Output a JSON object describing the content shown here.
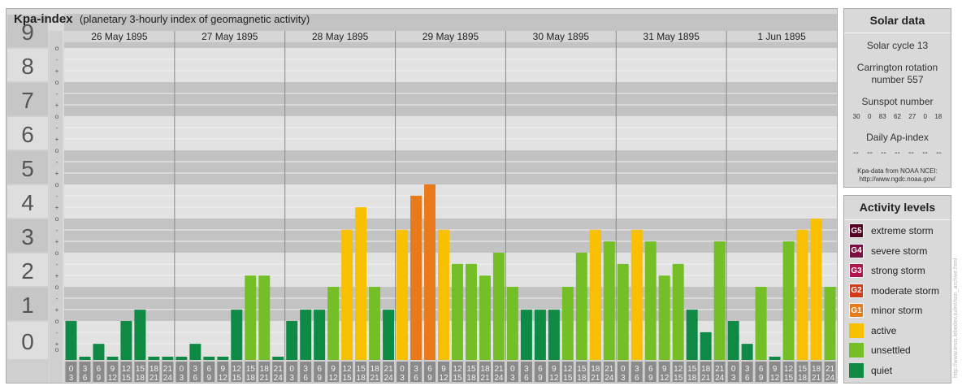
{
  "header": {
    "title": "Kpa-index",
    "subtitle": "(planetary 3-hourly index of geomagnetic activity)"
  },
  "solar": {
    "title": "Solar data",
    "cycle": "Solar cycle 13",
    "carrington": "Carrington rotation number 557",
    "sunspot_label": "Sunspot number",
    "sunspot_values": [
      "30",
      "0",
      "83",
      "62",
      "27",
      "0",
      "18"
    ],
    "ap_label": "Daily Ap-index",
    "ap_values": [
      "--",
      "--",
      "--",
      "--",
      "--",
      "--",
      "--"
    ],
    "source_note_1": "Kpa-data from NOAA NCEI:",
    "source_note_2": "http://www.ngdc.noaa.gov/"
  },
  "activity": {
    "title": "Activity levels",
    "levels": [
      {
        "code": "G5",
        "label": "extreme storm",
        "color": "#5a0025"
      },
      {
        "code": "G4",
        "label": "severe storm",
        "color": "#7a1040"
      },
      {
        "code": "G3",
        "label": "strong storm",
        "color": "#b0154e"
      },
      {
        "code": "G2",
        "label": "moderate storm",
        "color": "#d23a1c"
      },
      {
        "code": "G1",
        "label": "minor storm",
        "color": "#e87a1c"
      },
      {
        "code": "",
        "label": "active",
        "color": "#f8c000"
      },
      {
        "code": "",
        "label": "unsettled",
        "color": "#74bf26"
      },
      {
        "code": "",
        "label": "quiet",
        "color": "#0e8a45"
      }
    ]
  },
  "watermark": "http://www.tesis.lebedev.ru/en/sun_archive.html",
  "chart_data": {
    "type": "bar",
    "title": "Kpa-index",
    "ylim": [
      0,
      9
    ],
    "y_ticks": [
      "0",
      "1",
      "2",
      "3",
      "4",
      "5",
      "6",
      "7",
      "8",
      "9"
    ],
    "y_minor_ticks": [
      "o",
      "+",
      "-"
    ],
    "days": [
      "26 May 1895",
      "27 May 1895",
      "28 May 1895",
      "29 May 1895",
      "30 May 1895",
      "31 May 1895",
      "1 Jun 1895"
    ],
    "interval_start_labels": [
      "0",
      "3",
      "6",
      "9",
      "12",
      "15",
      "18",
      "21"
    ],
    "interval_end_labels": [
      "3",
      "6",
      "9",
      "12",
      "15",
      "18",
      "21",
      "24"
    ],
    "colors": {
      "quiet": "#0e8a45",
      "unsettled": "#74bf26",
      "active": "#f8c000",
      "minor_storm": "#e87a1c"
    },
    "values": [
      1.0,
      0.0,
      0.33,
      0.0,
      1.0,
      1.33,
      0.0,
      0.0,
      0.0,
      0.33,
      0.0,
      0.0,
      1.33,
      2.33,
      2.33,
      0.0,
      1.0,
      1.33,
      1.33,
      2.0,
      3.67,
      4.33,
      2.0,
      1.33,
      3.67,
      4.67,
      5.0,
      3.67,
      2.67,
      2.67,
      2.33,
      3.0,
      2.0,
      1.33,
      1.33,
      1.33,
      2.0,
      3.0,
      3.67,
      3.33,
      2.67,
      3.67,
      3.33,
      2.33,
      2.67,
      1.33,
      0.67,
      3.33,
      1.0,
      0.33,
      2.0,
      0.0,
      3.33,
      3.67,
      4.0,
      2.0
    ]
  }
}
